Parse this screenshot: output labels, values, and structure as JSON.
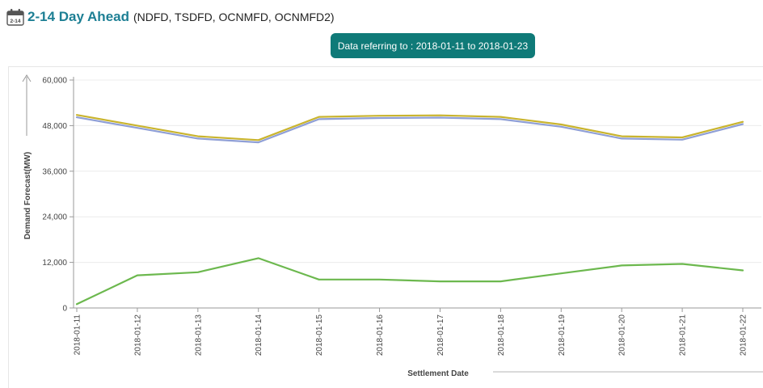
{
  "header": {
    "icon_label": "2-14",
    "title": "2-14 Day Ahead",
    "subtitle": "(NDFD, TSDFD, OCNMFD, OCNMFD2)"
  },
  "badge": {
    "text": "Data referring to : 2018-01-11 to 2018-01-23"
  },
  "colors": {
    "title": "#1d7f94",
    "badge": "#0f7a78",
    "series_yellow": "#c9b42e",
    "series_blue": "#8f9fd6",
    "series_green": "#6cb84e"
  },
  "chart_data": {
    "type": "line",
    "xlabel": "Settlement Date",
    "ylabel": "Demand Forecast(MW)",
    "ylim": [
      0,
      60000
    ],
    "yticks": [
      0,
      12000,
      24000,
      36000,
      48000,
      60000
    ],
    "ytick_labels": [
      "0",
      "12,000",
      "24,000",
      "36,000",
      "48,000",
      "60,000"
    ],
    "grid": true,
    "categories": [
      "2018-01-11",
      "2018-01-12",
      "2018-01-13",
      "2018-01-14",
      "2018-01-15",
      "2018-01-16",
      "2018-01-17",
      "2018-01-18",
      "2018-01-19",
      "2018-01-20",
      "2018-01-21",
      "2018-01-22"
    ],
    "series": [
      {
        "color": "#c9b42e",
        "values": [
          50800,
          48000,
          45200,
          44200,
          50300,
          50600,
          50700,
          50300,
          48300,
          45200,
          44900,
          49000
        ]
      },
      {
        "color": "#8f9fd6",
        "values": [
          50200,
          47400,
          44600,
          43600,
          49700,
          50000,
          50100,
          49700,
          47700,
          44600,
          44300,
          48400
        ]
      },
      {
        "color": "#6cb84e",
        "values": [
          1000,
          8600,
          9400,
          13100,
          7500,
          7500,
          7000,
          7000,
          9100,
          11200,
          11600,
          9900
        ]
      }
    ]
  }
}
